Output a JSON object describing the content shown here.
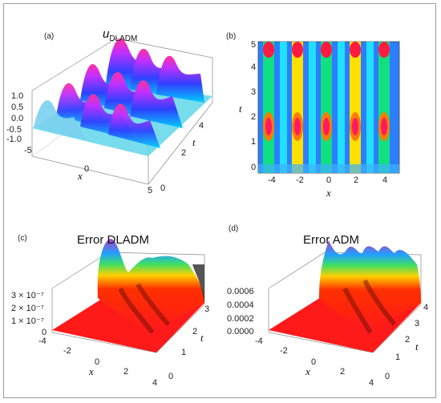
{
  "figure": {
    "panels": [
      {
        "id": "a",
        "label": "(a)",
        "title_main": "u",
        "title_sub": "DLADM",
        "z_ticks": [
          "1.0",
          "0.5",
          "0.0",
          "-0.5",
          "-1.0"
        ],
        "x_ticks": [
          "-5",
          "0",
          "5"
        ],
        "t_ticks": [
          "0",
          "2",
          "4"
        ],
        "x_label": "x",
        "t_label": "t"
      },
      {
        "id": "b",
        "label": "(b)",
        "y_ticks": [
          "0",
          "1",
          "2",
          "3",
          "4",
          "5"
        ],
        "x_ticks": [
          "-4",
          "-2",
          "0",
          "2",
          "4"
        ],
        "x_label": "x",
        "y_label": "t"
      },
      {
        "id": "c",
        "label": "(c)",
        "title": "Error DLADM",
        "z_ticks": [
          "3 × 10⁻⁷",
          "2 × 10⁻⁷",
          "1 × 10⁻⁷",
          "0"
        ],
        "x_ticks": [
          "-4",
          "-2",
          "0",
          "2",
          "4"
        ],
        "t_ticks": [
          "0",
          "1",
          "2",
          "3"
        ],
        "x_label": "x",
        "t_label": "t"
      },
      {
        "id": "d",
        "label": "(d)",
        "title": "Error ADM",
        "z_ticks": [
          "0.0006",
          "0.0004",
          "0.0002",
          "0.0000"
        ],
        "x_ticks": [
          "-4",
          "-2",
          "0",
          "2",
          "4"
        ],
        "t_ticks": [
          "0",
          "1",
          "2",
          "3",
          "4"
        ],
        "x_label": "x",
        "t_label": "t"
      }
    ]
  }
}
